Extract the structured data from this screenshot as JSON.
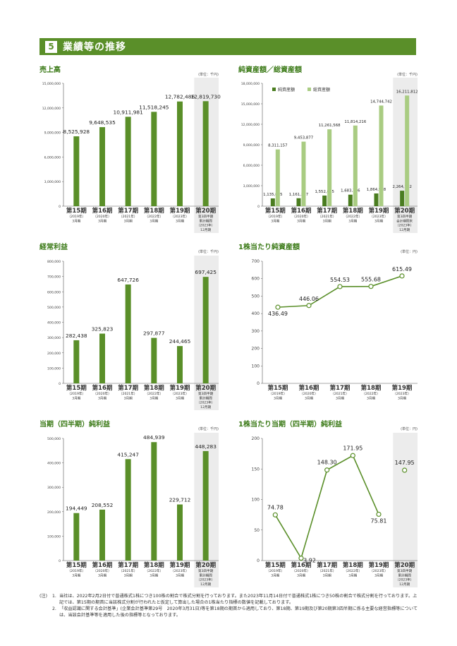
{
  "section": {
    "number": "5",
    "title": "業績等の推移"
  },
  "categories": [
    {
      "period": "第15期",
      "year": "（2019年）",
      "month": "3月期"
    },
    {
      "period": "第16期",
      "year": "（2020年）",
      "month": "3月期"
    },
    {
      "period": "第17期",
      "year": "（2021年）",
      "month": "3月期"
    },
    {
      "period": "第18期",
      "year": "（2022年）",
      "month": "3月期"
    },
    {
      "period": "第19期",
      "year": "（2023年）",
      "month": "3月期"
    }
  ],
  "chart_data": [
    {
      "id": "sales",
      "type": "bar",
      "title": "売上高",
      "unit": "(単位：千円)",
      "ylim": [
        0,
        15000000
      ],
      "yticks": [
        "0",
        "3,000,000",
        "6,000,000",
        "9,000,000",
        "12,000,000",
        "15,000,000"
      ],
      "color": "#5a8f29",
      "values": [
        8525928,
        9648535,
        10911981,
        11518245,
        12782486
      ],
      "value_labels": [
        "8,525,928",
        "9,648,535",
        "10,911,981",
        "11,518,245",
        "12,782,486"
      ],
      "extra": {
        "value": 12819730,
        "label": "12,819,730",
        "cat": [
          "第20期",
          "第3四半期",
          "累計期間",
          "（2023年）",
          "12月期"
        ]
      }
    },
    {
      "id": "assets",
      "type": "bar",
      "title": "純資産額／総資産額",
      "unit": "(単位：千円)",
      "ylim": [
        0,
        18000000
      ],
      "yticks": [
        "0",
        "3,000,000",
        "6,000,000",
        "9,000,000",
        "12,000,000",
        "15,000,000",
        "18,000,000"
      ],
      "legend": [
        "純資産額",
        "総資産額"
      ],
      "series": [
        {
          "name": "純資産額",
          "color": "#4a7d20",
          "values": [
            1135085,
            1161527,
            1552695,
            1683706,
            1864938
          ],
          "value_labels": [
            "1,135,085",
            "1,161,527",
            "1,552,695",
            "1,683,706",
            "1,864,938"
          ],
          "extra": {
            "value": 2264742,
            "label": "2,264,742"
          }
        },
        {
          "name": "総資産額",
          "color": "#a9cc82",
          "values": [
            8311157,
            9453877,
            11261568,
            11814216,
            14744742
          ],
          "value_labels": [
            "8,311,157",
            "9,453,877",
            "11,261,568",
            "11,814,216",
            "14,744,742"
          ],
          "extra": {
            "value": 16211812,
            "label": "16,211,812"
          }
        }
      ],
      "extra_cat": [
        "第20期",
        "第3四半期",
        "会計期間末",
        "（2023年）",
        "12月期"
      ]
    },
    {
      "id": "ordinary",
      "type": "bar",
      "title": "経常利益",
      "unit": "(単位：千円)",
      "ylim": [
        0,
        800000
      ],
      "yticks": [
        "0",
        "100,000",
        "200,000",
        "300,000",
        "400,000",
        "500,000",
        "600,000",
        "700,000",
        "800,000"
      ],
      "color": "#5a8f29",
      "values": [
        282438,
        325823,
        647726,
        297877,
        244465
      ],
      "value_labels": [
        "282,438",
        "325,823",
        "647,726",
        "297,877",
        "244,465"
      ],
      "extra": {
        "value": 697425,
        "label": "697,425",
        "cat": [
          "第20期",
          "第3四半期",
          "累計期間",
          "（2023年）",
          "12月期"
        ]
      }
    },
    {
      "id": "bps",
      "type": "line",
      "title": "1株当たり純資産額",
      "unit": "(単位：円)",
      "ylim": [
        0,
        700
      ],
      "yticks": [
        "0",
        "100",
        "200",
        "300",
        "400",
        "500",
        "600",
        "700"
      ],
      "color": "#5a8f29",
      "values": [
        436.49,
        446.06,
        554.53,
        555.68,
        615.49
      ],
      "value_labels": [
        "436.49",
        "446.06",
        "554.53",
        "555.68",
        "615.49"
      ]
    },
    {
      "id": "netincome",
      "type": "bar",
      "title": "当期（四半期）純利益",
      "unit": "(単位：千円)",
      "ylim": [
        0,
        500000
      ],
      "yticks": [
        "0",
        "100,000",
        "200,000",
        "300,000",
        "400,000",
        "500,000"
      ],
      "color": "#5a8f29",
      "values": [
        194449,
        208552,
        415247,
        484939,
        229712
      ],
      "value_labels": [
        "194,449",
        "208,552",
        "415,247",
        "484,939",
        "229,712"
      ],
      "extra": {
        "value": 448283,
        "label": "448,283",
        "cat": [
          "第20期",
          "第3四半期",
          "累計期間",
          "（2023年）",
          "12月期"
        ]
      }
    },
    {
      "id": "eps",
      "type": "line",
      "title": "1株当たり当期（四半期）純利益",
      "unit": "(単位：円)",
      "ylim": [
        0,
        200
      ],
      "yticks": [
        "0",
        "50",
        "100",
        "150",
        "200"
      ],
      "color": "#5a8f29",
      "values": [
        74.78,
        3.92,
        148.3,
        171.95,
        75.81
      ],
      "value_labels": [
        "74.78",
        "3.92",
        "148.30",
        "171.95",
        "75.81"
      ],
      "extra": {
        "value": 147.95,
        "label": "147.95",
        "cat": [
          "第20期",
          "第3四半期",
          "累計期間",
          "（2023年）",
          "12月期"
        ]
      }
    }
  ],
  "notes": {
    "head": "(注)",
    "items": [
      {
        "num": "1.",
        "text": "当社は、2022年2月2日付で普通株式1株につき100株の割合で株式分割を行っております。また2023年11月14日付で普通株式1株につき50株の割合で株式分割を行っております。上記では、第15期の期首に当該株式分割が行われたと仮定して算出した場合の1株当たり指標の数値を記載しております。"
      },
      {
        "num": "2.",
        "text": "「収益認識に関する会計基準」(企業会計基準第29号　2020年3月31日)等を第18期の期首から適用しており、第18期、第19期及び第20期第3四半期に係る主要な経営指標等については、当該会計基準等を適用した後の指標等となっております。"
      }
    ]
  }
}
